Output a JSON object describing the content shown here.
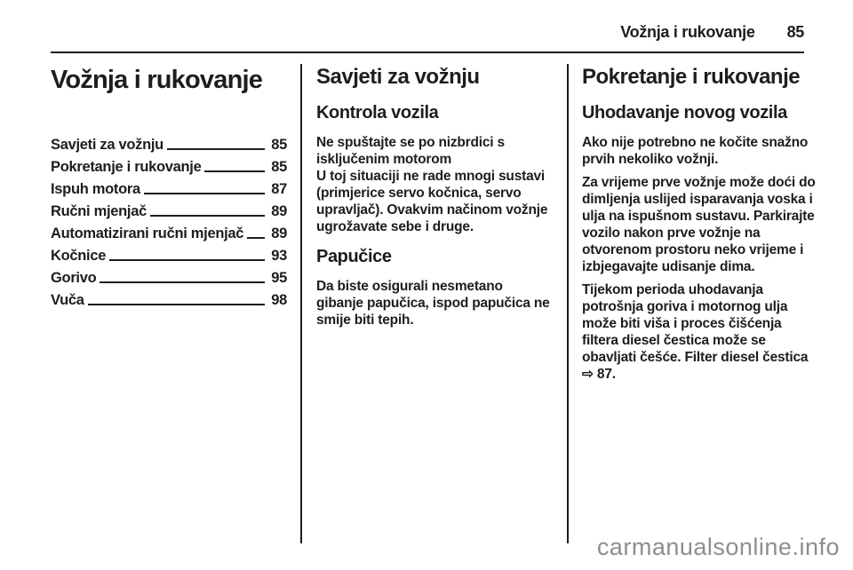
{
  "header": {
    "chapter": "Vožnja i rukovanje",
    "page_number": "85"
  },
  "toc": {
    "title": "Vožnja i rukovanje",
    "entries": [
      {
        "label": "Savjeti za vožnju",
        "page": "85"
      },
      {
        "label": "Pokretanje i rukovanje",
        "page": "85"
      },
      {
        "label": "Ispuh motora",
        "page": "87"
      },
      {
        "label": "Ručni mjenjač",
        "page": "89"
      },
      {
        "label": "Automatizirani ručni mjenjač",
        "page": "89"
      },
      {
        "label": "Kočnice",
        "page": "93"
      },
      {
        "label": "Gorivo",
        "page": "95"
      },
      {
        "label": "Vuča",
        "page": "98"
      }
    ]
  },
  "column2": {
    "heading": "Savjeti za vožnju",
    "subheading": "Kontrola vozila",
    "bold_lead": "Ne spuštajte se po nizbrdici s isključenim motorom",
    "paragraph1": "U toj situaciji ne rade mnogi sustavi (primjerice servo kočnica, servo upravljač). Ovakvim načinom vožnje ugrožavate sebe i druge.",
    "subheading2": "Papučice",
    "paragraph2": "Da biste osigurali nesmetano gibanje papučica, ispod papučica ne smije biti tepih."
  },
  "column3": {
    "heading": "Pokretanje i rukovanje",
    "subheading": "Uhodavanje novog vozila",
    "paragraph1": "Ako nije potrebno ne kočite snažno prvih nekoliko vožnji.",
    "paragraph2": "Za vrijeme prve vožnje može doći do dimljenja uslijed isparavanja voska i ulja na ispušnom sustavu. Parkirajte vozilo nakon prve vožnje na otvorenom prostoru neko vrijeme i izbjegavajte udisanje dima.",
    "paragraph3": "Tijekom perioda uhodavanja potrošnja goriva i motornog ulja može biti viša i proces čišćenja filtera diesel čestica može se obavljati češće. Filter diesel čestica",
    "reference": "⇨ 87."
  },
  "watermark": "carmanualsonline.info",
  "colors": {
    "text": "#1d1d1f",
    "watermark": "#8e8e90",
    "background": "#ffffff"
  }
}
